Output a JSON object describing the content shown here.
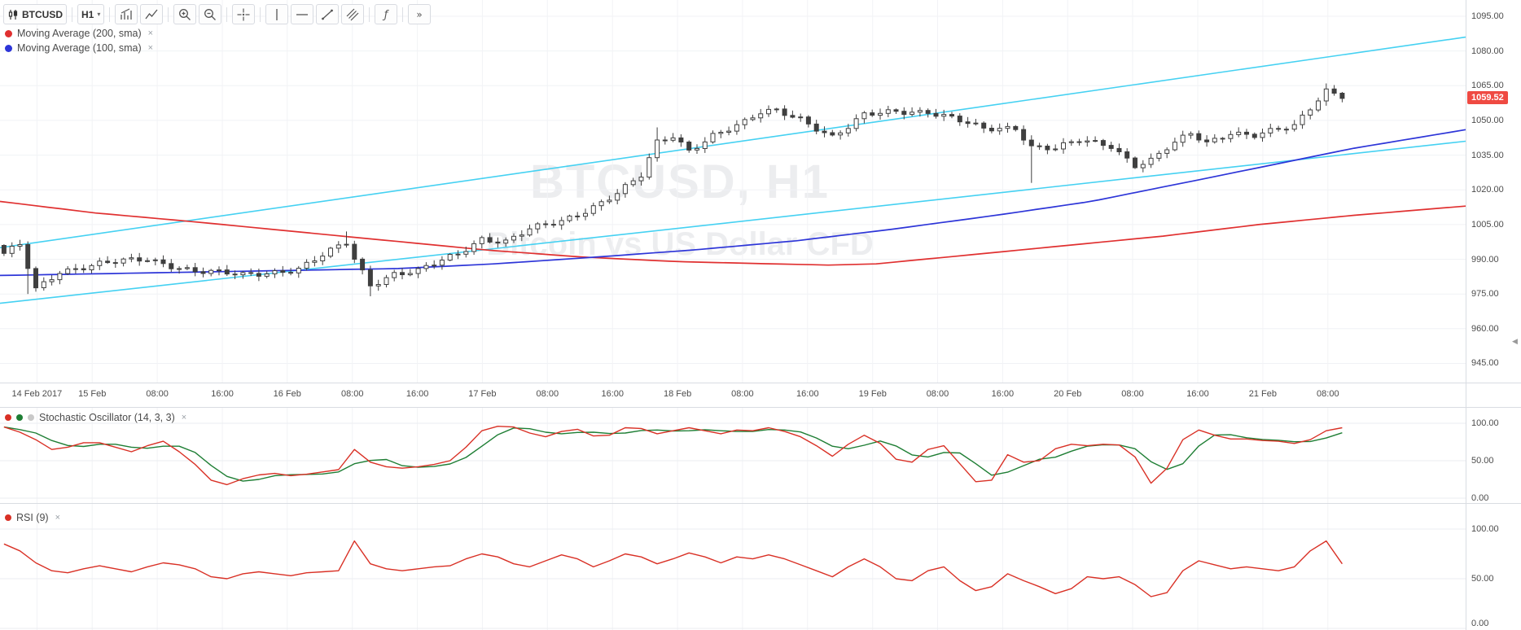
{
  "toolbar": {
    "symbol": "BTCUSD",
    "interval": "H1",
    "caret": "▾",
    "tool_groups": [
      [
        "chart-with-arrow",
        "line-chart"
      ],
      [
        "zoom-in",
        "zoom-out"
      ],
      [
        "crosshair"
      ],
      [
        "vertical-line-tool",
        "horizontal-line-tool",
        "trend-line-tool",
        "parallel-lines-tool"
      ],
      [
        "function"
      ],
      [
        "fast-forward"
      ]
    ]
  },
  "legend": {
    "items": [
      {
        "label": "Moving Average (200, sma)",
        "color": "#e03030",
        "close": "×"
      },
      {
        "label": "Moving Average (100, sma)",
        "color": "#2d35d8",
        "close": "×"
      }
    ]
  },
  "watermark": {
    "line1": "BTCUSD, H1",
    "line2": "Bitcoin vs US Dollar CFD"
  },
  "price_axis": {
    "labels": [
      "1095.00",
      "1080.00",
      "1065.00",
      "1050.00",
      "1035.00",
      "1020.00",
      "1005.00",
      "990.00",
      "975.00",
      "960.00",
      "945.00"
    ],
    "last_price_label": "1059.52",
    "badge_color": "#ef4a42"
  },
  "time_axis": [
    {
      "label": "14 Feb 2017",
      "x": 0.0252
    },
    {
      "label": "15 Feb",
      "x": 0.0629
    },
    {
      "label": "08:00",
      "x": 0.1073
    },
    {
      "label": "16:00",
      "x": 0.1517
    },
    {
      "label": "16 Feb",
      "x": 0.196
    },
    {
      "label": "08:00",
      "x": 0.2404
    },
    {
      "label": "16:00",
      "x": 0.2848
    },
    {
      "label": "17 Feb",
      "x": 0.3291
    },
    {
      "label": "08:00",
      "x": 0.3735
    },
    {
      "label": "16:00",
      "x": 0.4179
    },
    {
      "label": "18 Feb",
      "x": 0.4623
    },
    {
      "label": "08:00",
      "x": 0.5066
    },
    {
      "label": "16:00",
      "x": 0.551
    },
    {
      "label": "19 Feb",
      "x": 0.5954
    },
    {
      "label": "08:00",
      "x": 0.6397
    },
    {
      "label": "16:00",
      "x": 0.6841
    },
    {
      "label": "20 Feb",
      "x": 0.7285
    },
    {
      "label": "08:00",
      "x": 0.7728
    },
    {
      "label": "16:00",
      "x": 0.8172
    },
    {
      "label": "21 Feb",
      "x": 0.8616
    },
    {
      "label": "08:00",
      "x": 0.906
    }
  ],
  "panes": {
    "stochastic": {
      "title": "Stochastic Oscillator (14, 3, 3)",
      "close": "×",
      "dot_colors": [
        "#d93025",
        "#1e7e34",
        "#c9c9c9"
      ],
      "axis_labels": [
        "100.00",
        "50.00",
        "0.00"
      ]
    },
    "rsi": {
      "title": "RSI (9)",
      "close": "×",
      "dot_colors": [
        "#d93025"
      ],
      "axis_labels": [
        "100.00",
        "50.00",
        "0.00"
      ]
    }
  },
  "edge_marker": "◀",
  "chart_data": {
    "type": "candlestick",
    "symbol": "BTCUSD",
    "interval": "H1",
    "title": "BTCUSD, H1",
    "subtitle": "Bitcoin vs US Dollar CFD",
    "last_price": 1059.52,
    "y_ticks": [
      1095,
      1080,
      1065,
      1050,
      1035,
      1020,
      1005,
      990,
      975,
      960,
      945
    ],
    "x_range_slots": 184,
    "candle_count": 169,
    "first_open": 996,
    "close_anchors": [
      [
        0,
        992
      ],
      [
        2,
        996
      ],
      [
        4,
        977
      ],
      [
        7,
        985
      ],
      [
        12,
        988
      ],
      [
        18,
        990
      ],
      [
        24,
        985
      ],
      [
        30,
        983
      ],
      [
        37,
        986
      ],
      [
        43,
        997
      ],
      [
        44,
        990
      ],
      [
        46,
        979
      ],
      [
        49,
        984
      ],
      [
        52,
        985
      ],
      [
        57,
        992
      ],
      [
        60,
        999
      ],
      [
        63,
        998
      ],
      [
        66,
        1003
      ],
      [
        70,
        1006
      ],
      [
        73,
        1011
      ],
      [
        77,
        1019
      ],
      [
        80,
        1026
      ],
      [
        82,
        1040
      ],
      [
        84,
        1043
      ],
      [
        86,
        1037
      ],
      [
        89,
        1044
      ],
      [
        93,
        1049
      ],
      [
        95,
        1053
      ],
      [
        97,
        1054
      ],
      [
        100,
        1051
      ],
      [
        104,
        1043
      ],
      [
        106,
        1047
      ],
      [
        108,
        1052
      ],
      [
        112,
        1054
      ],
      [
        116,
        1054
      ],
      [
        119,
        1051
      ],
      [
        123,
        1046
      ],
      [
        127,
        1047
      ],
      [
        129,
        1039
      ],
      [
        132,
        1038
      ],
      [
        135,
        1041
      ],
      [
        139,
        1039
      ],
      [
        142,
        1031
      ],
      [
        144,
        1033
      ],
      [
        146,
        1038
      ],
      [
        149,
        1044
      ],
      [
        151,
        1040
      ],
      [
        154,
        1045
      ],
      [
        157,
        1044
      ],
      [
        160,
        1046
      ],
      [
        162,
        1047
      ],
      [
        164,
        1055
      ],
      [
        166,
        1063
      ],
      [
        167,
        1062
      ],
      [
        168,
        1059.52
      ]
    ],
    "wick_events": [
      {
        "i": 3,
        "low": 975
      },
      {
        "i": 4,
        "low": 976
      },
      {
        "i": 43,
        "high": 1002
      },
      {
        "i": 46,
        "low": 974
      },
      {
        "i": 82,
        "high": 1047
      },
      {
        "i": 129,
        "low": 1023
      },
      {
        "i": 166,
        "high": 1066
      }
    ],
    "sma200": {
      "color": "#e03030",
      "anchors": [
        [
          0,
          1015
        ],
        [
          12,
          1010
        ],
        [
          25,
          1006
        ],
        [
          37,
          1002
        ],
        [
          49,
          998
        ],
        [
          61,
          994
        ],
        [
          73,
          991
        ],
        [
          85,
          989
        ],
        [
          97,
          988
        ],
        [
          104,
          987.5
        ],
        [
          110,
          988
        ],
        [
          116,
          990
        ],
        [
          122,
          992
        ],
        [
          134,
          996
        ],
        [
          146,
          1000
        ],
        [
          158,
          1005
        ],
        [
          170,
          1009
        ],
        [
          184,
          1013
        ]
      ]
    },
    "sma100": {
      "color": "#2d35d8",
      "anchors": [
        [
          0,
          983
        ],
        [
          25,
          984.5
        ],
        [
          50,
          986
        ],
        [
          62,
          988
        ],
        [
          75,
          991
        ],
        [
          87,
          994
        ],
        [
          100,
          998
        ],
        [
          112,
          1003
        ],
        [
          125,
          1009
        ],
        [
          137,
          1015
        ],
        [
          150,
          1024
        ],
        [
          160,
          1031
        ],
        [
          170,
          1038
        ],
        [
          184,
          1046
        ]
      ]
    },
    "channel": {
      "color": "#45d1f2",
      "upper": [
        [
          0,
          995
        ],
        [
          184,
          1086
        ]
      ],
      "lower": [
        [
          0,
          971
        ],
        [
          184,
          1041
        ]
      ]
    },
    "stochastic": {
      "k_color": "#d93025",
      "d_color": "#1e7e34",
      "sample_step": 2,
      "k": [
        95,
        88,
        78,
        65,
        68,
        74,
        74,
        68,
        62,
        70,
        76,
        62,
        45,
        24,
        18,
        26,
        31,
        33,
        30,
        32,
        35,
        38,
        65,
        48,
        42,
        40,
        42,
        45,
        50,
        68,
        90,
        96,
        95,
        87,
        82,
        89,
        92,
        83,
        84,
        94,
        93,
        86,
        90,
        94,
        90,
        86,
        91,
        90,
        94,
        89,
        82,
        70,
        56,
        72,
        84,
        73,
        52,
        48,
        65,
        70,
        46,
        22,
        24,
        58,
        48,
        50,
        66,
        72,
        70,
        72,
        71,
        55,
        20,
        40,
        78,
        91,
        84,
        79,
        79,
        77,
        76,
        73,
        78,
        90,
        94
      ]
    },
    "rsi": {
      "color": "#d93025",
      "sample_step": 2,
      "values": [
        85,
        78,
        66,
        58,
        56,
        60,
        63,
        60,
        57,
        62,
        66,
        64,
        60,
        52,
        50,
        55,
        57,
        55,
        53,
        56,
        57,
        58,
        88,
        65,
        60,
        58,
        60,
        62,
        63,
        70,
        75,
        72,
        65,
        62,
        68,
        74,
        70,
        62,
        68,
        75,
        72,
        65,
        70,
        76,
        72,
        66,
        72,
        70,
        74,
        70,
        64,
        58,
        52,
        62,
        70,
        62,
        50,
        48,
        58,
        62,
        48,
        38,
        42,
        55,
        48,
        42,
        35,
        40,
        52,
        50,
        52,
        44,
        32,
        36,
        58,
        68,
        64,
        60,
        62,
        60,
        58,
        62,
        78,
        88,
        65
      ]
    }
  }
}
